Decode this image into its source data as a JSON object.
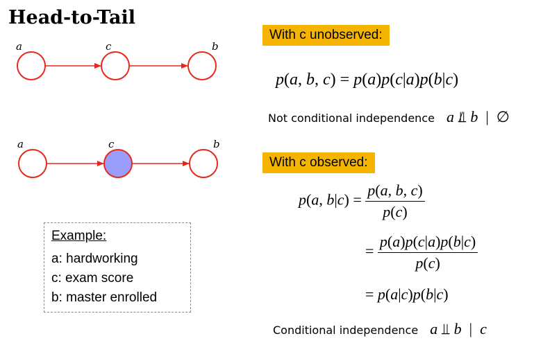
{
  "title": "Head-to-Tail",
  "graphs": [
    {
      "nodes": [
        "a",
        "c",
        "b"
      ],
      "observed": [
        false,
        false,
        false
      ]
    },
    {
      "nodes": [
        "a",
        "c",
        "b"
      ],
      "observed": [
        false,
        true,
        false
      ]
    }
  ],
  "colors": {
    "edge": "#e8271b",
    "observed_fill": "#9b9dfb",
    "banner": "#f5b400"
  },
  "unobserved": {
    "banner": "With c unobserved:",
    "note": "Not conditional independence"
  },
  "observed": {
    "banner": "With c observed:",
    "note": "Conditional independence"
  },
  "example": {
    "heading": "Example:",
    "rows": [
      "a: hardworking",
      "c: exam score",
      "b: master enrolled"
    ]
  }
}
